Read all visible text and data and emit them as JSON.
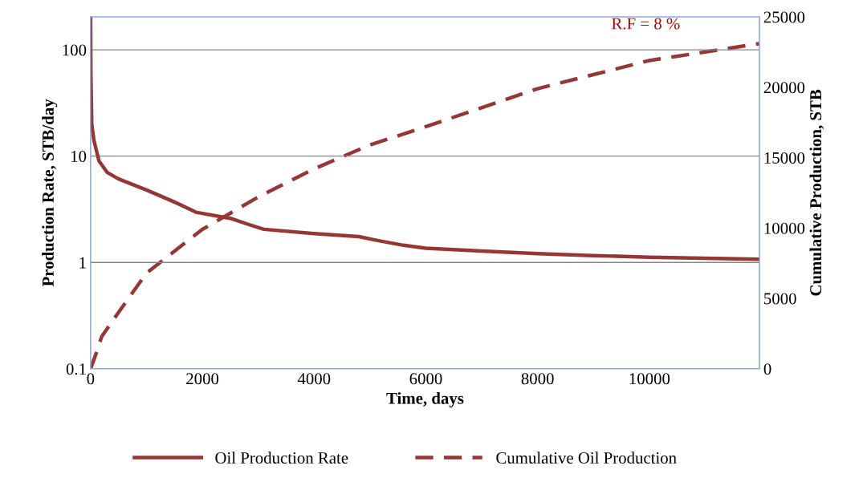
{
  "chart_data": {
    "type": "line",
    "xlabel": "Time, days",
    "ylabel": "Production Rate, STB/day",
    "y2label": "Cumulative Production, STB",
    "log": "y",
    "grid": "y",
    "legend": "bottom",
    "marker": "none",
    "xlim": [
      0,
      11970
    ],
    "xticks": [
      0,
      2000,
      4000,
      6000,
      8000,
      10000
    ],
    "ylim": [
      0.1,
      204
    ],
    "yticks": [
      0.1,
      1,
      10,
      100
    ],
    "y2lim": [
      0,
      25000
    ],
    "y2ticks": [
      0,
      5000,
      10000,
      15000,
      20000,
      25000
    ],
    "annotations": [
      "R.F = 8 %"
    ],
    "series": [
      {
        "name": "Oil Production Rate",
        "color": "#953735",
        "line_style": "solid",
        "x": [
          0,
          5,
          20,
          60,
          150,
          300,
          500,
          1000,
          1500,
          1900,
          2500,
          2800,
          3100,
          4000,
          4800,
          5100,
          5600,
          6000,
          7000,
          8000,
          9000,
          10000,
          11970
        ],
        "values": [
          200,
          60,
          20,
          14,
          9,
          7,
          6.1,
          4.8,
          3.7,
          2.95,
          2.6,
          2.3,
          2.05,
          1.87,
          1.75,
          1.62,
          1.45,
          1.36,
          1.28,
          1.21,
          1.16,
          1.12,
          1.07
        ]
      },
      {
        "name": "Cumulative Oil Production",
        "color": "#953735",
        "line_style": "dashed",
        "axis": "y2",
        "x": [
          0,
          100,
          200,
          500,
          1000,
          2000,
          3000,
          4000,
          5000,
          6000,
          8000,
          10000,
          11970
        ],
        "values": [
          0,
          1100,
          2300,
          4000,
          6800,
          9900,
          12200,
          14200,
          15900,
          17200,
          19900,
          21900,
          23100
        ]
      }
    ]
  }
}
